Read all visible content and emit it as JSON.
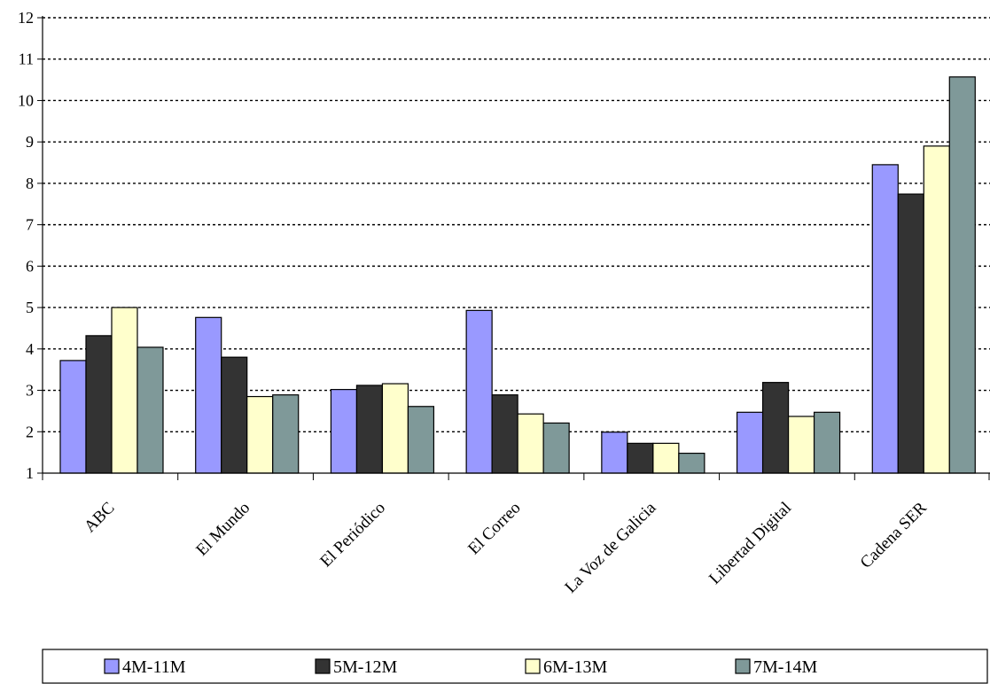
{
  "chart_data": {
    "type": "bar",
    "title": "",
    "xlabel": "",
    "ylabel": "",
    "ylim": [
      1,
      12
    ],
    "yticks": [
      1,
      2,
      3,
      4,
      5,
      6,
      7,
      8,
      9,
      10,
      11,
      12
    ],
    "grid": "horizontal dotted",
    "legend_position": "bottom",
    "categories": [
      "ABC",
      "El Mundo",
      "El Periódico",
      "El Correo",
      "La Voz de Galicia",
      "Libertad Digital",
      "Cadena SER"
    ],
    "series": [
      {
        "name": "4M-11M",
        "color": "#9999ff",
        "values": [
          3.72,
          4.76,
          3.02,
          4.93,
          1.99,
          2.47,
          8.45
        ]
      },
      {
        "name": "5M-12M",
        "color": "#333333",
        "values": [
          4.32,
          3.8,
          3.12,
          2.89,
          1.72,
          3.19,
          7.74
        ]
      },
      {
        "name": "6M-13M",
        "color": "#ffffcc",
        "values": [
          5.0,
          2.85,
          3.16,
          2.43,
          1.72,
          2.37,
          8.9
        ]
      },
      {
        "name": "7M-14M",
        "color": "#7f9999",
        "values": [
          4.04,
          2.89,
          2.61,
          2.21,
          1.48,
          2.47,
          10.57
        ]
      }
    ]
  }
}
